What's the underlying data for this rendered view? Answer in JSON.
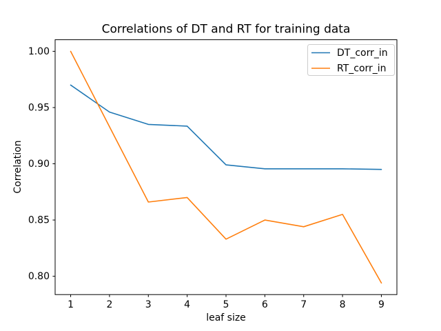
{
  "figure": {
    "background": "#ffffff"
  },
  "chart_data": {
    "type": "line",
    "title": "Correlations of DT and RT for training data",
    "xlabel": "leaf size",
    "ylabel": "Correlation",
    "x": [
      1,
      2,
      3,
      4,
      5,
      6,
      7,
      8,
      9
    ],
    "series": [
      {
        "name": "DT_corr_in",
        "color": "#1f77b4",
        "values": [
          0.97,
          0.946,
          0.935,
          0.9335,
          0.899,
          0.8955,
          0.8955,
          0.8955,
          0.895
        ]
      },
      {
        "name": "RT_corr_in",
        "color": "#ff7f0e",
        "values": [
          1.0,
          0.933,
          0.866,
          0.87,
          0.833,
          0.85,
          0.844,
          0.855,
          0.794
        ]
      }
    ],
    "xlim": [
      0.6,
      9.4
    ],
    "ylim": [
      0.7837,
      1.0103
    ],
    "xticks": {
      "values": [
        1,
        2,
        3,
        4,
        5,
        6,
        7,
        8,
        9
      ],
      "labels": [
        "1",
        "2",
        "3",
        "4",
        "5",
        "6",
        "7",
        "8",
        "9"
      ]
    },
    "yticks": {
      "values": [
        0.8,
        0.85,
        0.9,
        0.95,
        1.0
      ],
      "labels": [
        "0.80",
        "0.85",
        "0.90",
        "0.95",
        "1.00"
      ]
    },
    "grid": false,
    "axis_color": "#000000",
    "legend": {
      "position": "upper right",
      "border_color": "#cccccc",
      "entries": [
        "DT_corr_in",
        "RT_corr_in"
      ]
    }
  }
}
